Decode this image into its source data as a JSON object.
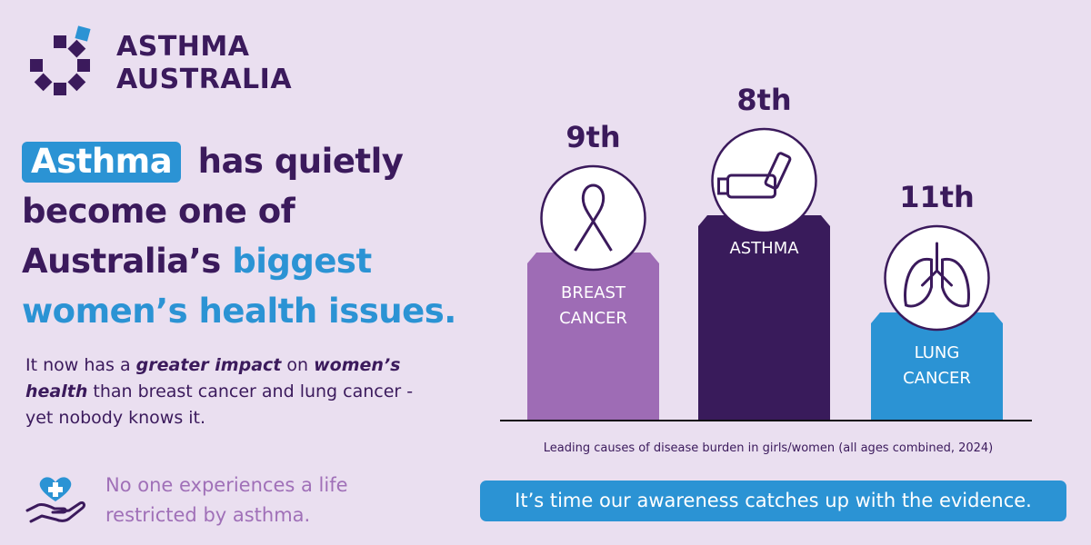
{
  "brand": {
    "line1": "ASTHMA",
    "line2": "AUSTRALIA",
    "colors": {
      "purple": "#3b1a5c",
      "blue": "#2b93d4",
      "light_purple": "#a070b8",
      "background": "#eadff0"
    }
  },
  "headline": {
    "highlight": "Asthma",
    "part1": "has quietly become one of Australia’s",
    "part2": "biggest women’s health issues."
  },
  "body": {
    "t1": "It now has a ",
    "em1": "greater impact",
    "t2": " on ",
    "em2": "women’s health",
    "t3": " than breast cancer and lung cancer - yet nobody knows it."
  },
  "tagline": {
    "icon": "hand-heart-icon",
    "text": "No one experiences a life restricted by asthma."
  },
  "chart_data": {
    "type": "bar",
    "categories": [
      "BREAST CANCER",
      "ASTHMA",
      "LUNG CANCER"
    ],
    "ranks": [
      "9th",
      "8th",
      "11th"
    ],
    "rank_values": [
      9,
      8,
      11
    ],
    "icons": [
      "ribbon-icon",
      "inhaler-icon",
      "lungs-icon"
    ],
    "colors": [
      "#9e6cb5",
      "#391b5b",
      "#2b93d4"
    ],
    "caption": "Leading causes of disease burden in girls/women (all ages combined, 2024)"
  },
  "cta": "It’s time our awareness catches up with the evidence."
}
